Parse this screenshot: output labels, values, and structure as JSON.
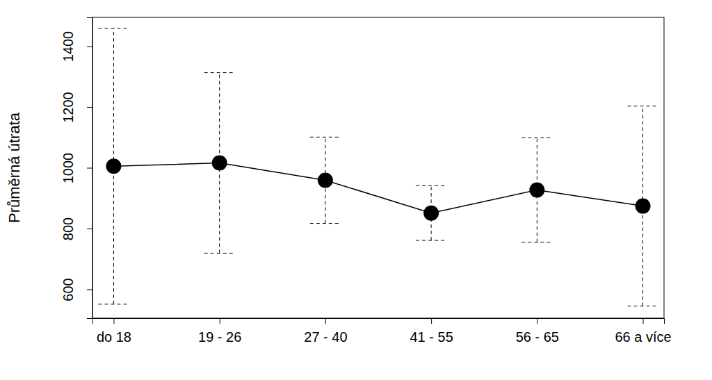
{
  "chart_data": {
    "type": "line",
    "y_label": "Průměrná útrata",
    "categories": [
      "do 18",
      "19 - 26",
      "27 - 40",
      "41 - 55",
      "56 - 65",
      "66 a více"
    ],
    "values": [
      1005,
      1016,
      959,
      851,
      927,
      874
    ],
    "errors": [
      454,
      297,
      142,
      90,
      172,
      329
    ],
    "color": "#000000",
    "marker": "circle",
    "ylim": [
      505,
      1495
    ],
    "yticks": [
      600,
      800,
      1000,
      1200,
      1400
    ],
    "grid": false
  }
}
